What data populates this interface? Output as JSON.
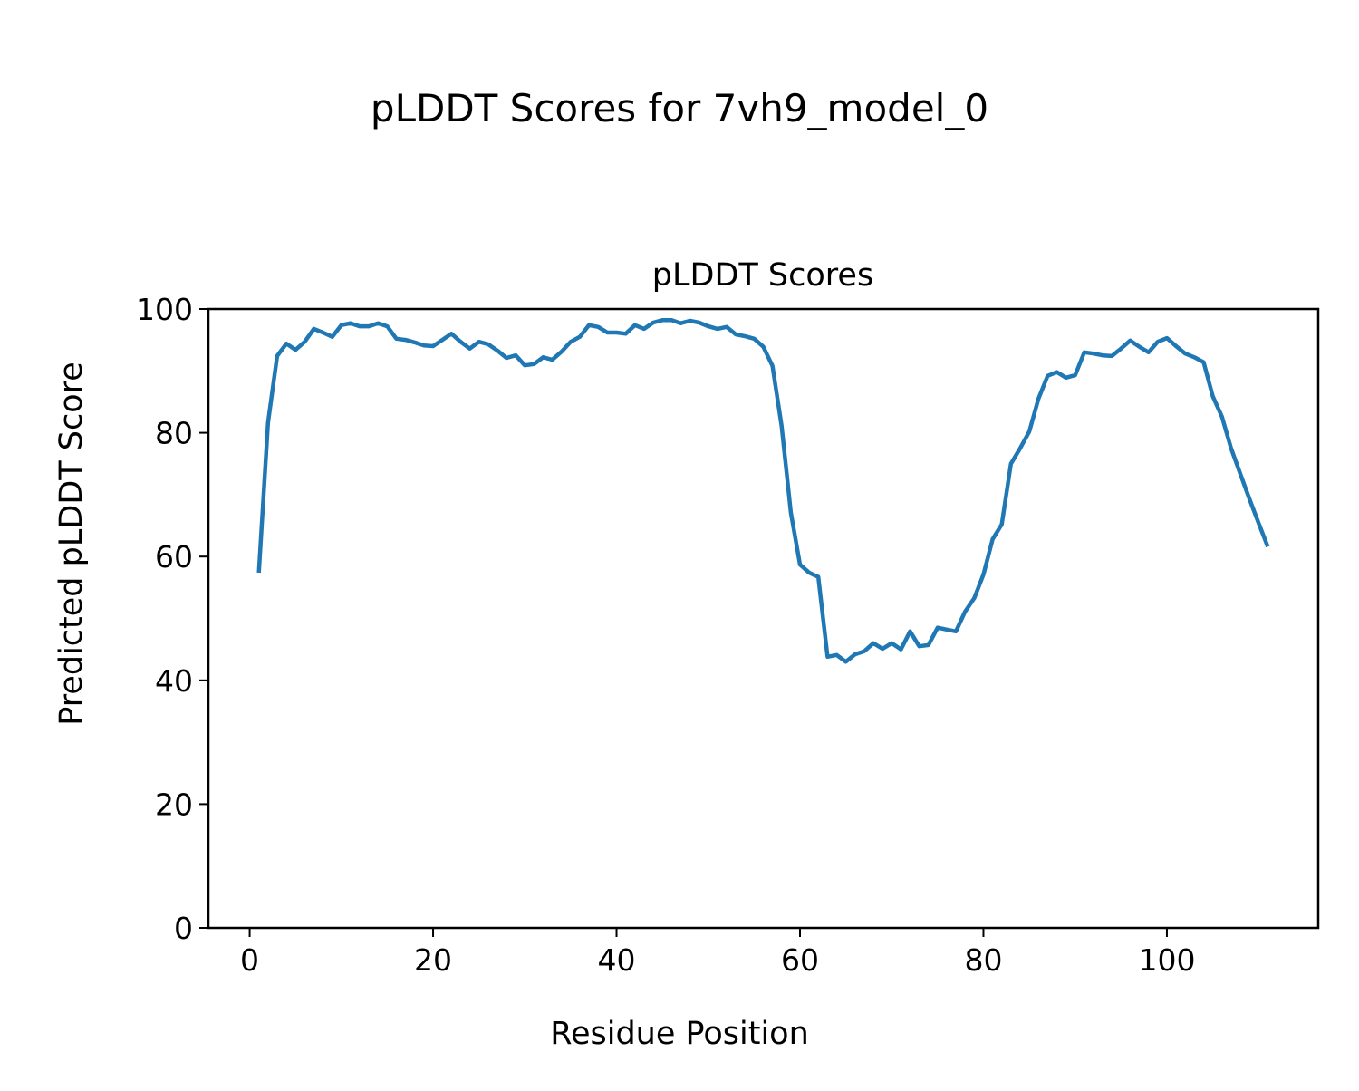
{
  "figure_title": "pLDDT Scores for 7vh9_model_0",
  "chart_data": {
    "type": "line",
    "title": "pLDDT Scores",
    "xlabel": "Residue Position",
    "ylabel": "Predicted pLDDT Score",
    "xlim": [
      -4.5,
      116.5
    ],
    "ylim": [
      0,
      100
    ],
    "xticks": [
      0,
      20,
      40,
      60,
      80,
      100
    ],
    "yticks": [
      0,
      20,
      40,
      60,
      80,
      100
    ],
    "grid": false,
    "line_color": "#1f77b4",
    "x_start": 1,
    "values": [
      57.4,
      81.6,
      92.4,
      94.4,
      93.4,
      94.7,
      96.8,
      96.2,
      95.5,
      97.4,
      97.7,
      97.2,
      97.2,
      97.7,
      97.2,
      95.2,
      95.0,
      94.6,
      94.1,
      94.0,
      95.0,
      96.0,
      94.7,
      93.6,
      94.7,
      94.3,
      93.3,
      92.1,
      92.5,
      90.9,
      91.1,
      92.2,
      91.8,
      93.1,
      94.7,
      95.5,
      97.4,
      97.1,
      96.2,
      96.2,
      96.0,
      97.4,
      96.8,
      97.8,
      98.2,
      98.2,
      97.7,
      98.1,
      97.8,
      97.2,
      96.8,
      97.1,
      95.9,
      95.6,
      95.2,
      93.9,
      90.8,
      81.1,
      67.1,
      58.7,
      57.4,
      56.7,
      43.8,
      44.1,
      43.0,
      44.2,
      44.7,
      46.0,
      45.1,
      46.0,
      45.0,
      47.9,
      45.5,
      45.7,
      48.5,
      48.2,
      47.9,
      51.1,
      53.3,
      57.1,
      62.8,
      65.2,
      75.0,
      77.5,
      80.2,
      85.5,
      89.2,
      89.8,
      88.9,
      89.3,
      93.0,
      92.8,
      92.5,
      92.4,
      93.6,
      94.9,
      93.9,
      93.0,
      94.7,
      95.3,
      94.0,
      92.8,
      92.2,
      91.4,
      85.9,
      82.6,
      77.5,
      73.4,
      69.3,
      65.4,
      61.6
    ]
  }
}
